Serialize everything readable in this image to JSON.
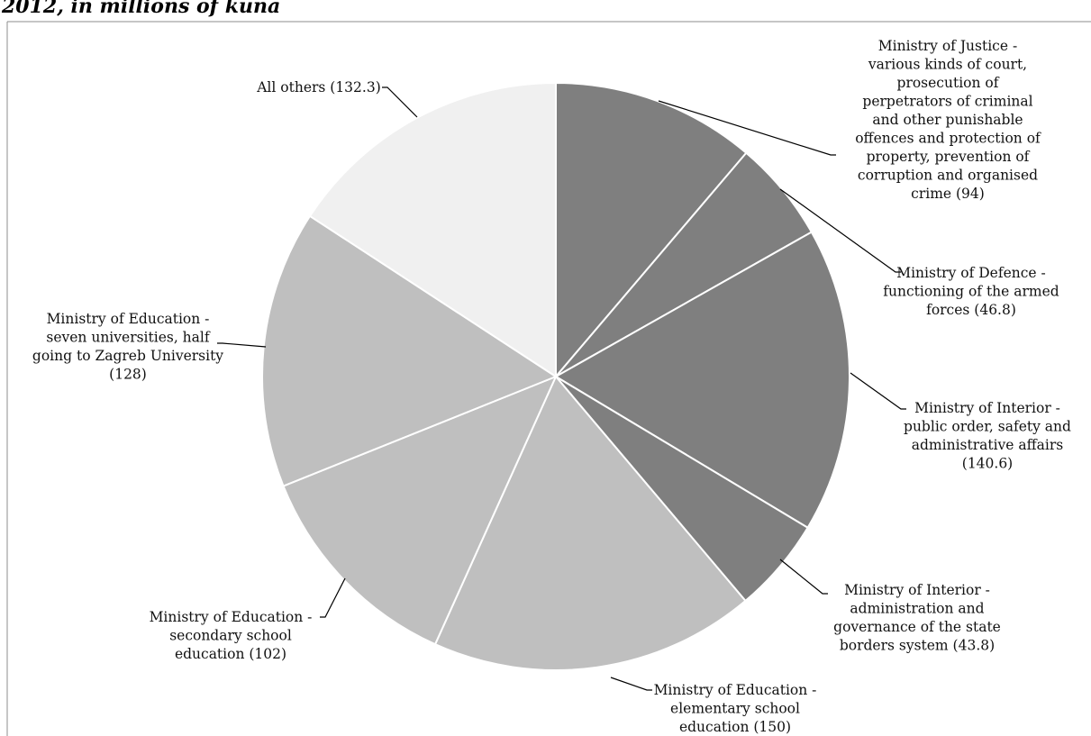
{
  "chart_data": {
    "type": "pie",
    "title": "2012, in millions of kuna",
    "slices": [
      {
        "label": "Ministry of Justice - various kinds of court, prosecution of perpetrators of criminal and other punishable offences and protection of property, prevention of corruption and organised crime (94)",
        "value": 94,
        "color": "#7f7f7f",
        "lines": [
          "Ministry of Justice -",
          "various kinds of court,",
          "prosecution of",
          "perpetrators of criminal",
          "and other punishable",
          "offences and protection of",
          "property, prevention of",
          "corruption and organised",
          "crime (94)"
        ]
      },
      {
        "label": "Ministry of Defence - functioning of the armed forces (46.8)",
        "value": 46.8,
        "color": "#7f7f7f",
        "lines": [
          "Ministry of Defence -",
          "functioning of the armed",
          "forces (46.8)"
        ]
      },
      {
        "label": "Ministry of Interior - public order, safety and administrative affairs (140.6)",
        "value": 140.6,
        "color": "#7f7f7f",
        "lines": [
          "Ministry of Interior -",
          "public order, safety and",
          "administrative affairs",
          "(140.6)"
        ]
      },
      {
        "label": "Ministry of Interior - administration and governance of the state borders system (43.8)",
        "value": 43.8,
        "color": "#7f7f7f",
        "lines": [
          "Ministry of Interior -",
          "administration and",
          "governance of the state",
          "borders system (43.8)"
        ]
      },
      {
        "label": "Ministry of Education - elementary school education (150)",
        "value": 150,
        "color": "#bfbfbf",
        "lines": [
          "Ministry of Education -",
          "elementary school",
          "education (150)"
        ]
      },
      {
        "label": "Ministry of Education - secondary school education (102)",
        "value": 102,
        "color": "#bfbfbf",
        "lines": [
          "Ministry of Education -",
          "secondary school",
          "education (102)"
        ]
      },
      {
        "label": "Ministry of Education - seven universities, half going to Zagreb University (128)",
        "value": 128,
        "color": "#bfbfbf",
        "lines": [
          "Ministry of Education -",
          "seven universities, half",
          "going to Zagreb University",
          "(128)"
        ]
      },
      {
        "label": "All others (132.3)",
        "value": 132.3,
        "color": "#f0f0f0",
        "lines": [
          "All others (132.3)"
        ]
      }
    ]
  }
}
